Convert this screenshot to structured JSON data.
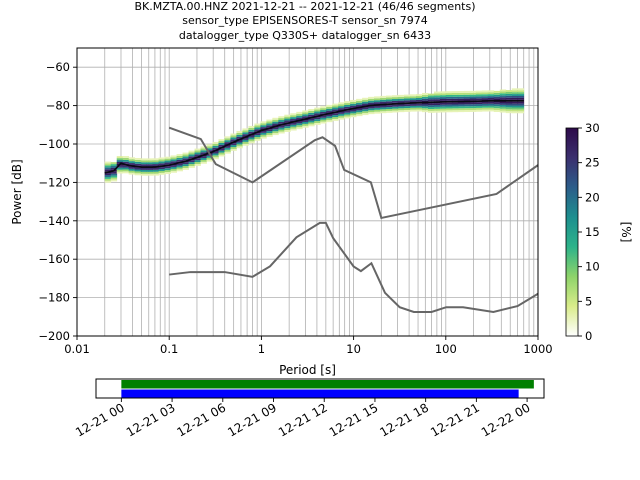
{
  "title_lines": [
    "BK.MZTA.00.HNZ   2021-12-21 -- 2021-12-21  (46/46 segments)",
    "sensor_type EPISENSORES-T sensor_sn 7974",
    "datalogger_type Q330S+ datalogger_sn 6433"
  ],
  "chart_data": [
    {
      "type": "heatmap",
      "title": "BK.MZTA.00.HNZ   2021-12-21 -- 2021-12-21  (46/46 segments)",
      "xlabel": "Period [s]",
      "ylabel": "Power [dB]",
      "xscale": "log",
      "xlim": [
        0.01,
        1000
      ],
      "ylim": [
        -200,
        -50
      ],
      "x_ticks": [
        0.01,
        0.1,
        1,
        10,
        100,
        1000
      ],
      "x_tick_labels": [
        "0.01",
        "0.1",
        "1",
        "10",
        "100",
        "1000"
      ],
      "y_ticks": [
        -200,
        -180,
        -160,
        -140,
        -120,
        -100,
        -80,
        -60
      ],
      "y_tick_labels": [
        "−200",
        "−180",
        "−160",
        "−140",
        "−120",
        "−100",
        "−80",
        "−60"
      ],
      "grid": true,
      "colorbar": {
        "label": "[%]",
        "range": [
          0,
          30
        ],
        "ticks": [
          0,
          5,
          10,
          15,
          20,
          25,
          30
        ],
        "tick_labels": [
          "0",
          "5",
          "10",
          "15",
          "20",
          "25",
          "30"
        ],
        "colormap": [
          "#ffffff",
          "#d9ec8a",
          "#8ed36a",
          "#2db38a",
          "#1d8f8f",
          "#2c5d8a",
          "#3b2f6e",
          "#2d0b4a"
        ]
      },
      "psd_mode": {
        "x": [
          0.02,
          0.025,
          0.03,
          0.035,
          0.04,
          0.05,
          0.07,
          0.1,
          0.15,
          0.2,
          0.3,
          0.5,
          0.7,
          1,
          1.5,
          2,
          3,
          5,
          7,
          10,
          15,
          20,
          30,
          50,
          70,
          100,
          200,
          300,
          500,
          700
        ],
        "y": [
          -115,
          -114,
          -110,
          -111,
          -111.5,
          -112,
          -112,
          -111,
          -109,
          -107,
          -104,
          -99,
          -96,
          -93,
          -90.5,
          -89,
          -87,
          -84.5,
          -83,
          -81.5,
          -80,
          -79.5,
          -79,
          -78.5,
          -78.3,
          -78,
          -77.8,
          -77.5,
          -77.5,
          -77.5
        ]
      },
      "psd_spread": [
        5,
        5,
        4,
        4,
        4,
        4,
        4,
        4,
        4,
        4,
        4,
        4,
        4,
        4,
        4,
        4,
        4,
        4,
        4,
        4,
        4,
        4,
        4,
        4,
        5,
        5,
        5,
        5,
        6,
        6
      ],
      "nhnm": {
        "x": [
          0.1,
          0.22,
          0.32,
          0.8,
          3.8,
          4.6,
          6.3,
          7.9,
          15.4,
          20,
          354.8,
          1000
        ],
        "y": [
          -91.5,
          -97.4,
          -110.5,
          -120,
          -98,
          -96.5,
          -101,
          -113.5,
          -120,
          -138.5,
          -126,
          -111
        ]
      },
      "nlnm": {
        "x": [
          0.1,
          0.17,
          0.4,
          0.8,
          1.24,
          2.4,
          4.3,
          5,
          6,
          10,
          12,
          15.6,
          21.9,
          31.6,
          45,
          70,
          101,
          154,
          328,
          600,
          1000
        ],
        "y": [
          -168,
          -166.7,
          -166.7,
          -169.2,
          -163.7,
          -148.6,
          -141.1,
          -141.1,
          -149,
          -163.8,
          -166.2,
          -162.1,
          -177.5,
          -185,
          -187.5,
          -187.5,
          -185,
          -185,
          -187.5,
          -184.4,
          -178
        ]
      }
    },
    {
      "type": "bar",
      "title": "",
      "xlabel": "",
      "ylabel": "",
      "x_tick_labels": [
        "12-21 00",
        "12-21 03",
        "12-21 06",
        "12-21 09",
        "12-21 12",
        "12-21 15",
        "12-21 18",
        "12-21 21",
        "12-22 00"
      ],
      "xlim_hours": [
        -1.5,
        25
      ],
      "series": [
        {
          "color": "#008000",
          "start_hour": 0,
          "end_hour": 24.4
        },
        {
          "color": "#0000ff",
          "start_hour": 0,
          "end_hour": 23.5
        }
      ]
    }
  ]
}
